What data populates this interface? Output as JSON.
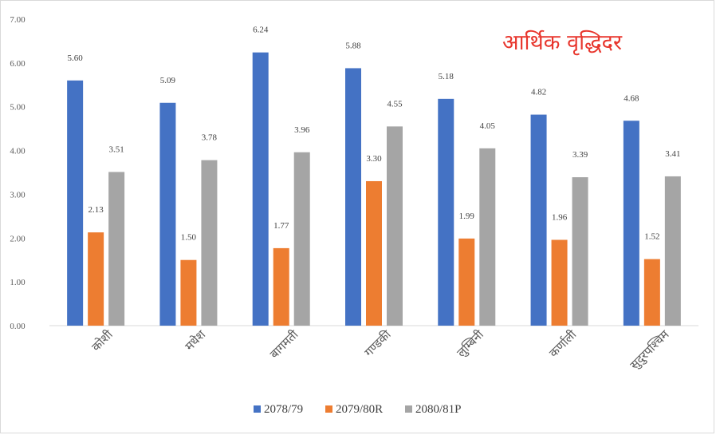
{
  "chart_data": {
    "type": "bar",
    "title": "आर्थिक वृद्धिदर",
    "categories": [
      "कोशी",
      "मधेश",
      "बागमती",
      "गण्डकी",
      "लुम्बिनी",
      "कर्णाली",
      "सुदुरपश्चिम"
    ],
    "series": [
      {
        "name": "2078/79",
        "color": "#4472c4",
        "values": [
          5.6,
          5.09,
          6.24,
          5.88,
          5.18,
          4.82,
          4.68
        ]
      },
      {
        "name": "2079/80R",
        "color": "#ed7d31",
        "values": [
          2.13,
          1.5,
          1.77,
          3.3,
          1.99,
          1.96,
          1.52
        ]
      },
      {
        "name": "2080/81P",
        "color": "#a5a5a5",
        "values": [
          3.51,
          3.78,
          3.96,
          4.55,
          4.05,
          3.39,
          3.41
        ]
      }
    ],
    "data_labels": [
      [
        "5.60",
        "5.09",
        "6.24",
        "5.88",
        "5.18",
        "4.82",
        "4.68"
      ],
      [
        "2.13",
        "1.50",
        "1.77",
        "3.30",
        "1.99",
        "1.96",
        "1.52"
      ],
      [
        "3.51",
        "3.78",
        "3.96",
        "4.55",
        "4.05",
        "3.39",
        "3.41"
      ]
    ],
    "ylim": [
      0,
      7
    ],
    "yticks": [
      "0.00",
      "1.00",
      "2.00",
      "3.00",
      "4.00",
      "5.00",
      "6.00",
      "7.00"
    ],
    "grid": false,
    "legend_position": "bottom"
  }
}
